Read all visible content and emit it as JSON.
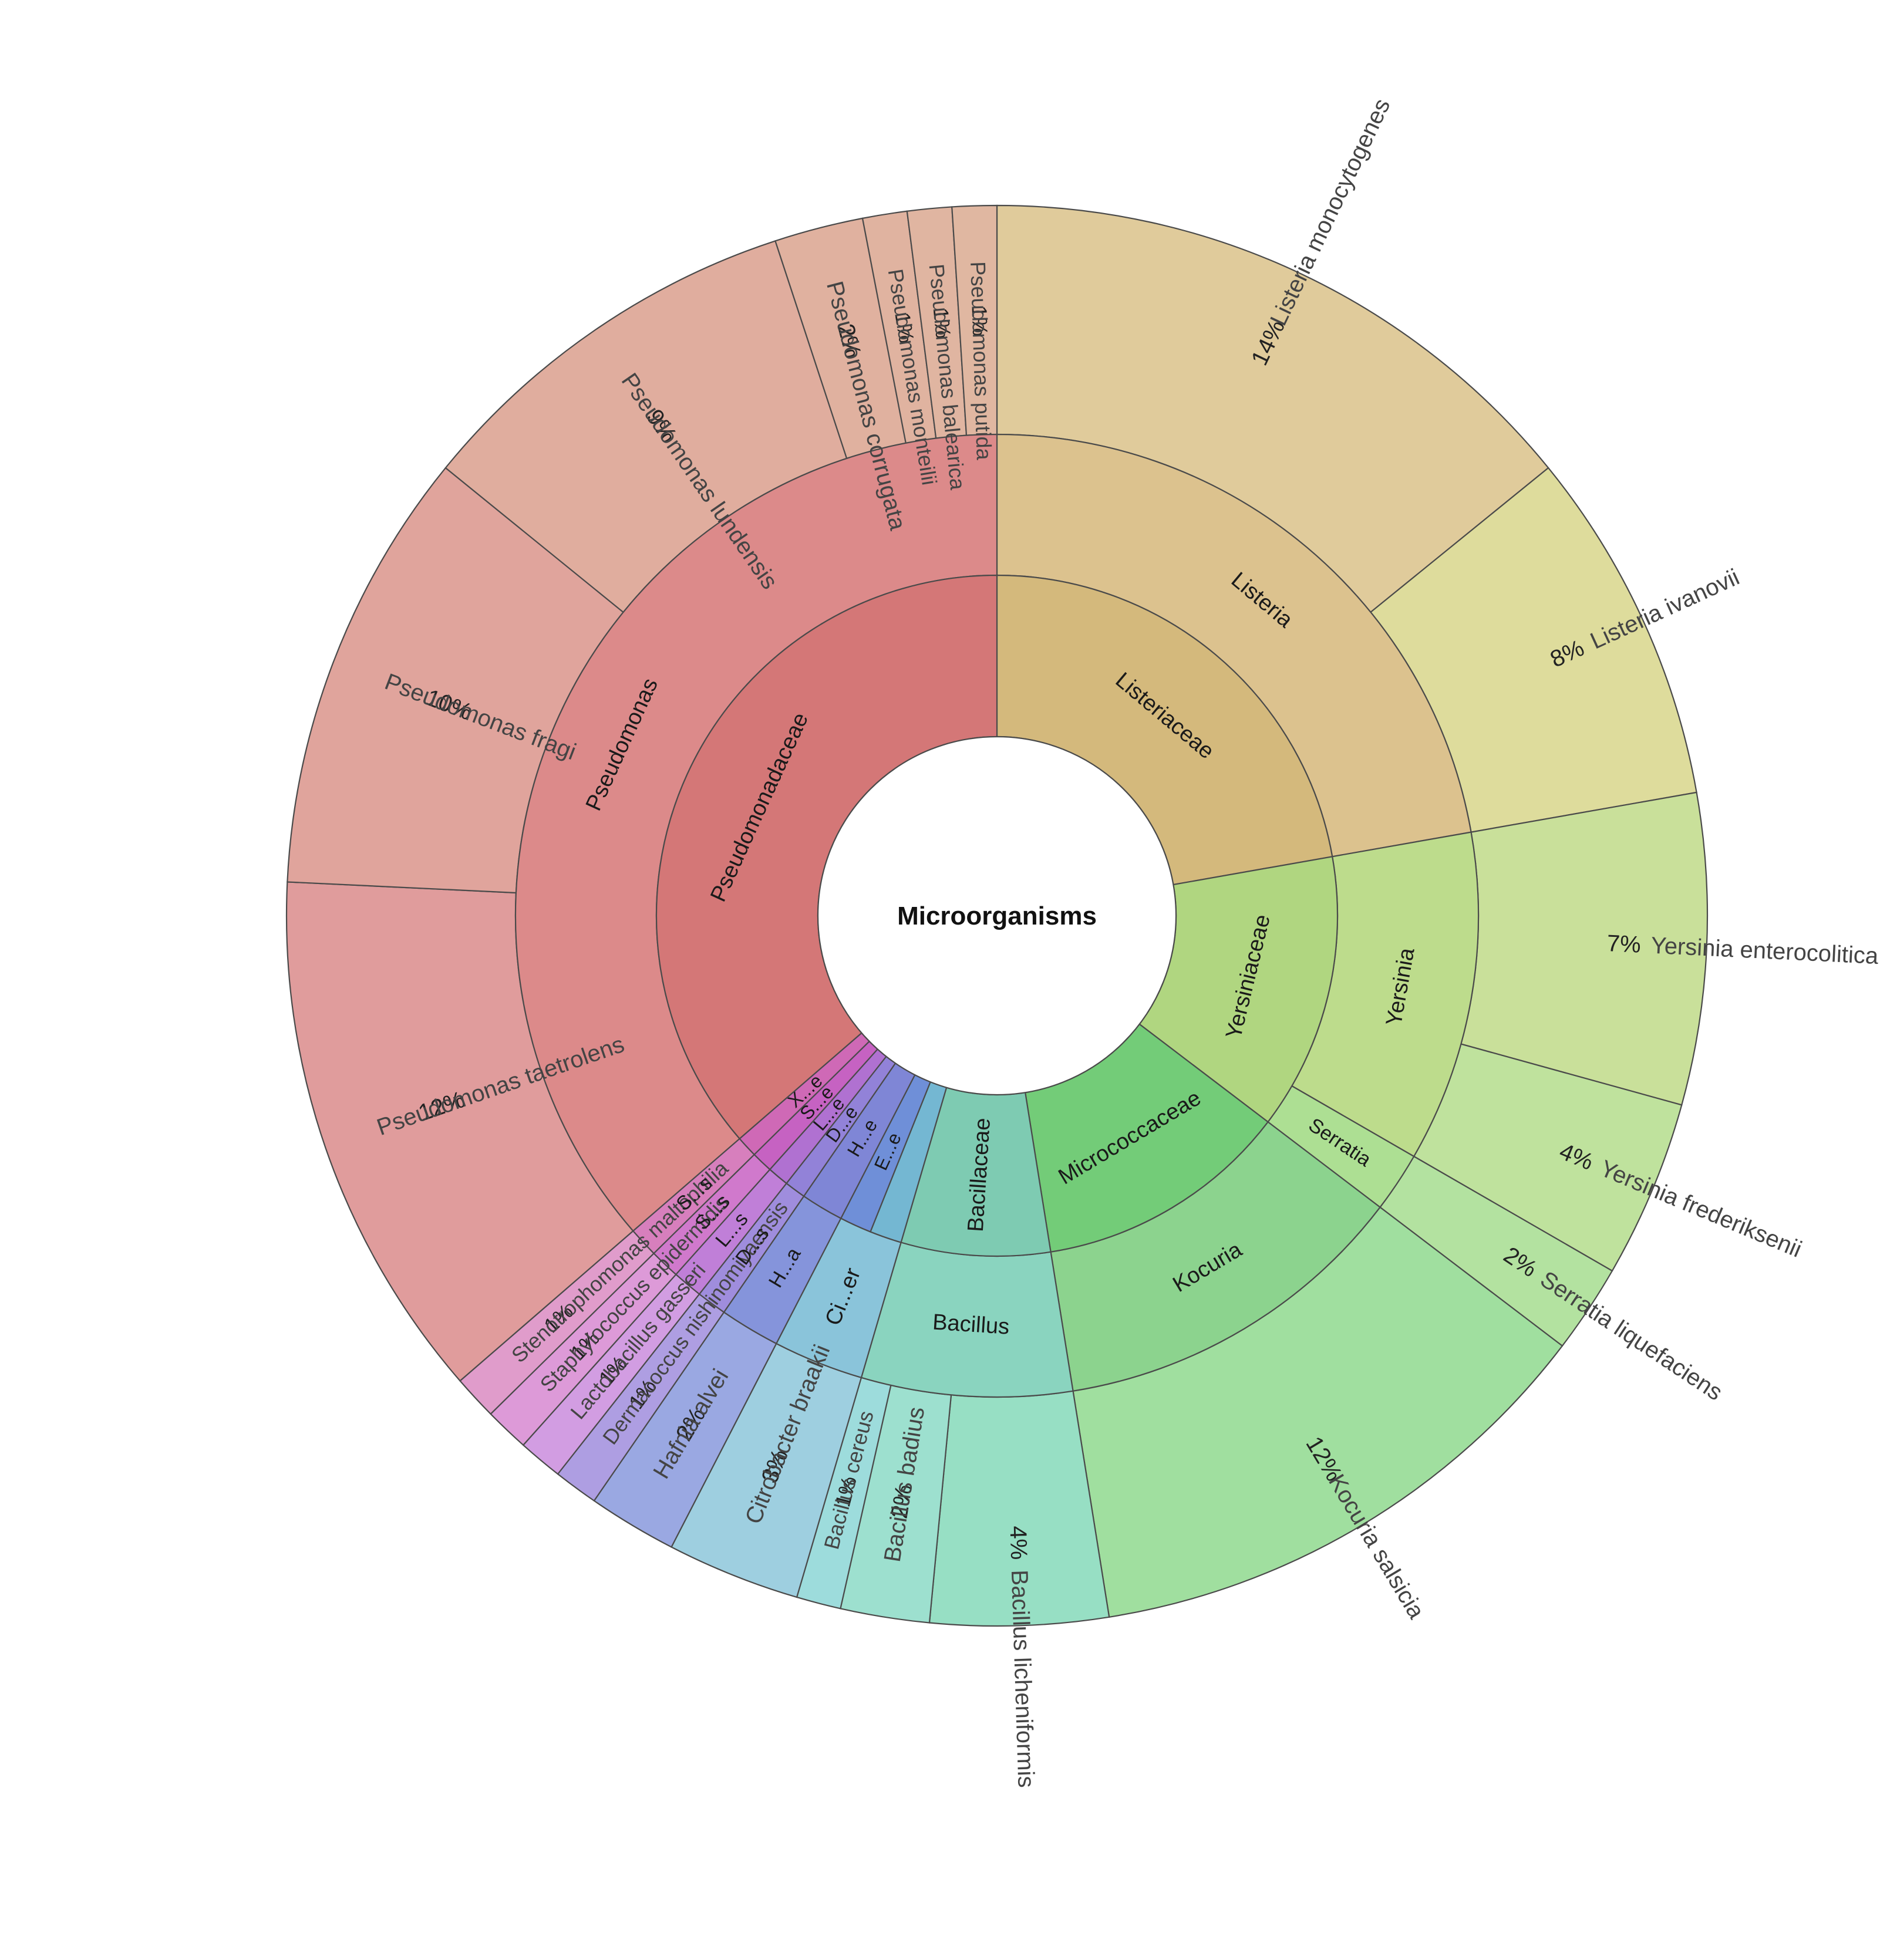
{
  "chart_data": {
    "type": "sunburst",
    "root": "Microorganisms",
    "families": [
      {
        "name": "Listeriaceae",
        "color": "#d4b97c"
      },
      {
        "name": "Yersiniaceae",
        "color": "#b0d680"
      },
      {
        "name": "Micrococcaceae",
        "color": "#73cc78"
      },
      {
        "name": "Bacillaceae",
        "color": "#7ecbb2"
      },
      {
        "name": "Ci...er family",
        "label": "",
        "color": "#74b7d2"
      },
      {
        "name": "E...e",
        "label": "E...e",
        "color": "#6f8fd8"
      },
      {
        "name": "H...e",
        "label": "H...e",
        "color": "#7f86d6"
      },
      {
        "name": "D...e",
        "label": "D...e",
        "color": "#9282d8"
      },
      {
        "name": "L...e",
        "label": "L...e",
        "color": "#b071d1"
      },
      {
        "name": "S...e",
        "label": "S...e",
        "color": "#c662c2"
      },
      {
        "name": "X...e",
        "label": "X...e",
        "color": "#cf69b6"
      },
      {
        "name": "Pseudomonadaceae",
        "color": "#d47777"
      }
    ],
    "genera": [
      {
        "name": "Listeria",
        "color": "#dcc28e"
      },
      {
        "name": "Yersinia",
        "color": "#bddc8c"
      },
      {
        "name": "Serratia",
        "color": "#addf93"
      },
      {
        "name": "Kocuria",
        "color": "#8cd38e"
      },
      {
        "name": "Bacillus",
        "color": "#8ad4bf"
      },
      {
        "name": "Citrobacter",
        "label": "Ci...er",
        "color": "#8ac4da"
      },
      {
        "name": "Hafnia",
        "label": "H...a",
        "color": "#8594db"
      },
      {
        "name": "Dermacoccus",
        "label": "D...s",
        "color": "#9f8ddd"
      },
      {
        "name": "Lactobacillus",
        "label": "L...s",
        "color": "#c07fd8"
      },
      {
        "name": "Staphylococcus",
        "label": "S...s",
        "color": "#d079cc"
      },
      {
        "name": "Stenotrophomonas",
        "label": "S...s",
        "color": "#d77fbd"
      },
      {
        "name": "Pseudomonas",
        "color": "#dc8a8a"
      }
    ],
    "species": [
      {
        "name": "Listeria monocytogenes",
        "pct_label": "14%",
        "value": 14,
        "color": "#e0cb9b"
      },
      {
        "name": "Listeria ivanovii",
        "pct_label": "8%",
        "value": 8,
        "color": "#dedc9c"
      },
      {
        "name": "Yersinia enterocolitica",
        "pct_label": "7%",
        "value": 7,
        "color": "#c9e09a"
      },
      {
        "name": "Yersinia frederiksenii",
        "pct_label": "4%",
        "value": 4,
        "color": "#bfe29d"
      },
      {
        "name": "Serratia liquefaciens",
        "pct_label": "2%",
        "value": 2,
        "color": "#b3e2a0"
      },
      {
        "name": "Kocuria salsicia",
        "pct_label": "12%",
        "value": 12,
        "color": "#a0df9f"
      },
      {
        "name": "Bacillus licheniformis",
        "pct_label": "4%",
        "value": 4,
        "color": "#97dfc4"
      },
      {
        "name": "Bacillus badius",
        "pct_label": "2%",
        "value": 2,
        "color": "#9de0cf"
      },
      {
        "name": "Bacillus cereus",
        "pct_label": "1%",
        "value": 1,
        "color": "#9ddcdc"
      },
      {
        "name": "Citrobacter braakii",
        "pct_label": "3%",
        "value": 3,
        "color": "#9ecfe0"
      },
      {
        "name": "Hafnia alvei",
        "pct_label": "2%",
        "value": 2,
        "color": "#9aa8e2"
      },
      {
        "name": "Dermacoccus nishinomiyaensis",
        "pct_label": "1%",
        "value": 1,
        "color": "#ae9ee2"
      },
      {
        "name": "Lactobacillus gasseri",
        "pct_label": "1%",
        "value": 1,
        "color": "#d29de2"
      },
      {
        "name": "Staphylococcus epidermidis",
        "pct_label": "1%",
        "value": 1,
        "color": "#dd9ad8"
      },
      {
        "name": "Stenotrophomonas maltophilia",
        "pct_label": "1%",
        "value": 1,
        "color": "#e09ccb"
      },
      {
        "name": "Pseudomonas taetrolens",
        "pct_label": "12%",
        "value": 12,
        "color": "#e09c9c"
      },
      {
        "name": "Pseudomonas fragi",
        "pct_label": "10%",
        "value": 10,
        "color": "#e0a49c"
      },
      {
        "name": "Pseudomonas lundensis",
        "pct_label": "9%",
        "value": 9,
        "color": "#e0ad9e"
      },
      {
        "name": "Pseudomonas corrugata",
        "pct_label": "2%",
        "value": 2,
        "color": "#e0b19f"
      },
      {
        "name": "Pseudomonas monteilii",
        "pct_label": "1%",
        "value": 1,
        "color": "#e0b3a0"
      },
      {
        "name": "Pseudomonas balearica",
        "pct_label": "1%",
        "value": 1,
        "color": "#e0b5a1"
      },
      {
        "name": "Pseudomonas putida",
        "pct_label": "1%",
        "value": 1,
        "color": "#e0b7a1"
      }
    ],
    "species_to_genus": [
      0,
      0,
      1,
      1,
      2,
      3,
      4,
      4,
      4,
      5,
      6,
      7,
      8,
      9,
      10,
      11,
      11,
      11,
      11,
      11,
      11,
      11
    ],
    "genus_to_family": [
      0,
      1,
      1,
      2,
      3,
      4,
      5,
      7,
      8,
      9,
      10,
      11
    ],
    "extra_family_segments_note": "",
    "family_spans_species": [
      [
        0,
        1
      ],
      [
        2,
        4
      ],
      [
        5,
        5
      ],
      [
        6,
        8
      ],
      [
        9,
        9
      ],
      [
        10,
        10
      ],
      [
        11,
        11
      ],
      [
        12,
        12
      ],
      [
        13,
        13
      ],
      [
        14,
        14
      ],
      [
        15,
        21
      ]
    ]
  }
}
